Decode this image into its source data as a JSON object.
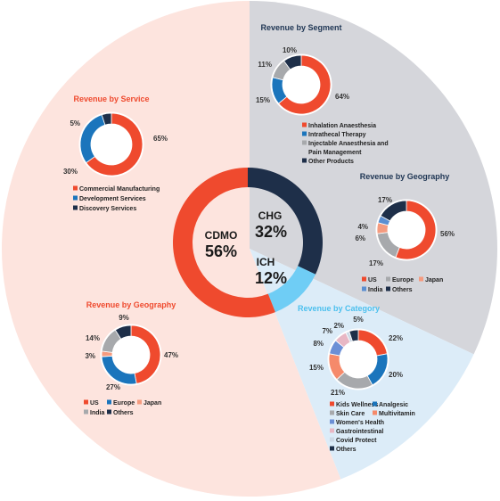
{
  "colors": {
    "cdmo_bg": "#fde4de",
    "chg_bg": "#d5d6db",
    "ich_bg": "#dcecf8",
    "cdmo": "#ef4a2e",
    "chg": "#1e2f49",
    "ich": "#6fcdf5",
    "ink": "#333333",
    "title_red": "#ef4a2e",
    "title_navy": "#1e3553",
    "title_cyan": "#4cc0ee"
  },
  "main": {
    "cdmo": {
      "name": "CDMO",
      "value": "56%"
    },
    "chg": {
      "name": "CHG",
      "value": "32%"
    },
    "ich": {
      "name": "ICH",
      "value": "12%"
    }
  },
  "chart_data": [
    {
      "id": "main",
      "type": "pie",
      "title": "",
      "categories": [
        "CDMO",
        "CHG",
        "ICH"
      ],
      "values": [
        56,
        32,
        12
      ],
      "colors": [
        "#ef4a2e",
        "#1e2f49",
        "#6fcdf5"
      ]
    },
    {
      "id": "cdmo_service",
      "type": "pie",
      "title": "Revenue by Service",
      "categories": [
        "Commercial Manufacturing",
        "Development Services",
        "Discovery Services"
      ],
      "values": [
        65,
        30,
        5
      ],
      "labels": [
        "65%",
        "30%",
        "5%"
      ],
      "colors": [
        "#ef4a2e",
        "#1b75bc",
        "#1e2f49"
      ]
    },
    {
      "id": "cdmo_geo",
      "type": "pie",
      "title": "Revenue by Geography",
      "categories": [
        "US",
        "Europe",
        "Japan",
        "India",
        "Others"
      ],
      "values": [
        47,
        27,
        3,
        14,
        9
      ],
      "labels": [
        "47%",
        "27%",
        "3%",
        "14%",
        "9%"
      ],
      "colors": [
        "#ef4a2e",
        "#1b75bc",
        "#f59b7f",
        "#a7a9ac",
        "#1e2f49"
      ]
    },
    {
      "id": "chg_segment",
      "type": "pie",
      "title": "Revenue by Segment",
      "categories": [
        "Inhalation Anaesthesia",
        "Intrathecal Therapy",
        "Injectable Anaesthesia and Pain Management",
        "Other Products"
      ],
      "legend_lines": [
        [
          "Inhalation Anaesthesia"
        ],
        [
          "Intrathecal Therapy"
        ],
        [
          "Injectable Anaesthesia and",
          "Pain Management"
        ],
        [
          "Other Products"
        ]
      ],
      "values": [
        64,
        15,
        11,
        10
      ],
      "labels": [
        "64%",
        "15%",
        "11%",
        "10%"
      ],
      "colors": [
        "#ef4a2e",
        "#1b75bc",
        "#a7a9ac",
        "#1e2f49"
      ]
    },
    {
      "id": "chg_geo",
      "type": "pie",
      "title": "Revenue by Geography",
      "categories": [
        "US",
        "Europe",
        "Japan",
        "India",
        "Others"
      ],
      "values": [
        56,
        17,
        6,
        4,
        17
      ],
      "labels": [
        "56%",
        "17%",
        "6%",
        "4%",
        "17%"
      ],
      "colors": [
        "#ef4a2e",
        "#a7a9ac",
        "#f59b7f",
        "#5b8fd1",
        "#1e2f49"
      ]
    },
    {
      "id": "ich_category",
      "type": "pie",
      "title": "Revenue by Category",
      "categories": [
        "Kids Wellness",
        "Analgesic",
        "Skin Care",
        "Multivitamin",
        "Women's Health",
        "Gastrointestinal",
        "Covid Protect",
        "Others"
      ],
      "values": [
        22,
        20,
        21,
        15,
        8,
        7,
        2,
        5
      ],
      "labels": [
        "22%",
        "20%",
        "21%",
        "15%",
        "8%",
        "7%",
        "2%",
        "5%"
      ],
      "colors": [
        "#ef4a2e",
        "#1b75bc",
        "#a7a9ac",
        "#f58a6b",
        "#6b8fd6",
        "#e8b7c4",
        "#cdd9e6",
        "#1e2f49"
      ]
    }
  ]
}
